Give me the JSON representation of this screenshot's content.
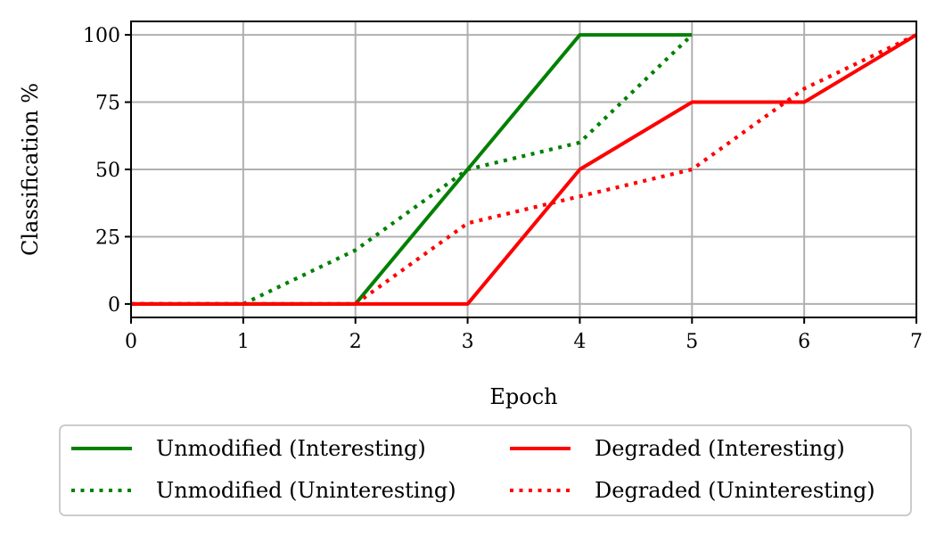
{
  "chart_data": {
    "type": "line",
    "title": "",
    "xlabel": "Epoch",
    "ylabel": "Classification %",
    "xlim": [
      0,
      7
    ],
    "ylim": [
      -5,
      105
    ],
    "xticks": [
      0,
      1,
      2,
      3,
      4,
      5,
      6,
      7
    ],
    "yticks": [
      0,
      25,
      50,
      75,
      100
    ],
    "grid": true,
    "legend_position": "below",
    "series": [
      {
        "name": "Unmodified (Interesting)",
        "color": "#008000",
        "style": "solid",
        "x": [
          0,
          1,
          2,
          3,
          4,
          5
        ],
        "values": [
          0,
          0,
          0,
          50,
          100,
          100
        ]
      },
      {
        "name": "Unmodified (Uninteresting)",
        "color": "#008000",
        "style": "dotted",
        "x": [
          0,
          1,
          2,
          3,
          4,
          5
        ],
        "values": [
          0,
          0,
          20,
          50,
          60,
          100
        ]
      },
      {
        "name": "Degraded (Interesting)",
        "color": "#ff0000",
        "style": "solid",
        "x": [
          0,
          1,
          2,
          3,
          4,
          5,
          6,
          7
        ],
        "values": [
          0,
          0,
          0,
          0,
          50,
          75,
          75,
          100
        ]
      },
      {
        "name": "Degraded (Uninteresting)",
        "color": "#ff0000",
        "style": "dotted",
        "x": [
          0,
          1,
          2,
          3,
          4,
          5,
          6,
          7
        ],
        "values": [
          0,
          0,
          0,
          30,
          40,
          50,
          80,
          100
        ]
      }
    ]
  }
}
